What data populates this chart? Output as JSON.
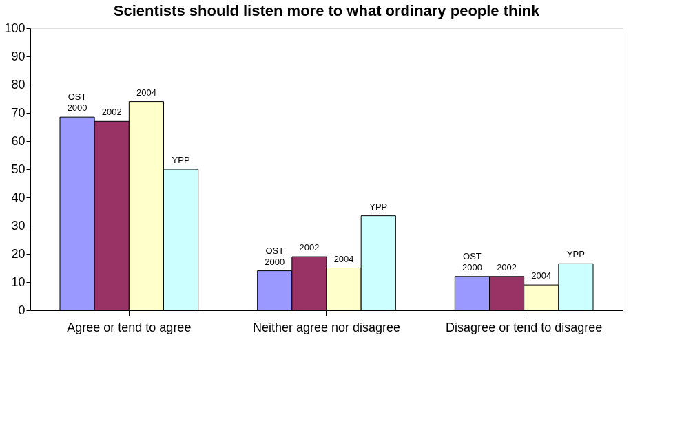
{
  "chart_data": {
    "type": "bar",
    "title": "Scientists should listen more to what ordinary people think",
    "categories": [
      "Agree or tend to agree",
      "Neither agree nor disagree",
      "Disagree or tend to disagree"
    ],
    "series": [
      {
        "name": "OST 2000",
        "color": "#9999ff",
        "values": [
          68.5,
          14,
          12
        ]
      },
      {
        "name": "2002",
        "color": "#993366",
        "values": [
          67,
          19,
          12
        ]
      },
      {
        "name": "2004",
        "color": "#ffffcc",
        "values": [
          74,
          15,
          9
        ]
      },
      {
        "name": "YPP",
        "color": "#ccffff",
        "values": [
          50,
          33.5,
          16.5
        ]
      }
    ],
    "ylim": [
      0,
      100
    ],
    "yticks": [
      0,
      10,
      20,
      30,
      40,
      50,
      60,
      70,
      80,
      90,
      100
    ],
    "grid": false,
    "legend": false
  }
}
